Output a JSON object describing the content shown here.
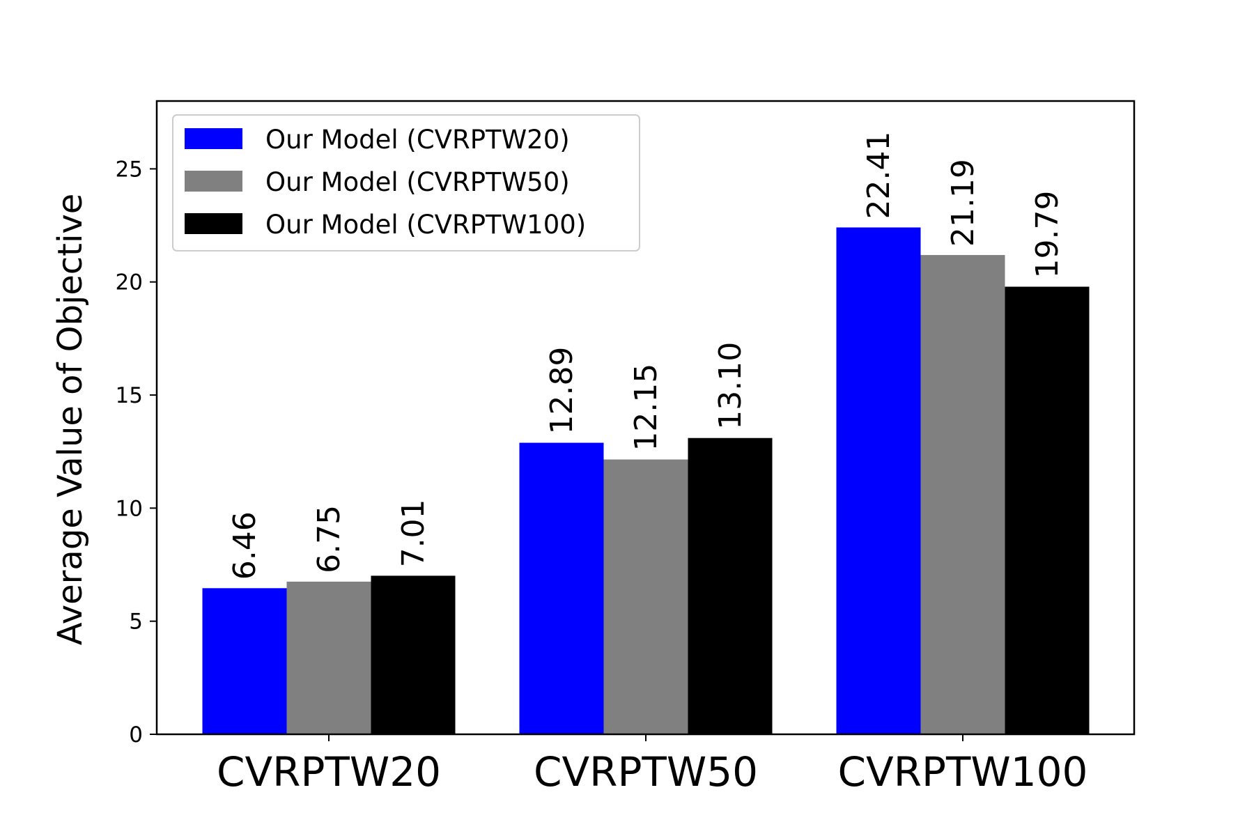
{
  "chart_data": {
    "type": "bar",
    "title": "",
    "xlabel": "",
    "ylabel": "Average Value of Objective",
    "categories": [
      "CVRPTW20",
      "CVRPTW50",
      "CVRPTW100"
    ],
    "series": [
      {
        "name": "Our Model (CVRPTW20)",
        "color": "#0000ff",
        "values": [
          6.46,
          12.89,
          22.41
        ],
        "labels": [
          "6.46",
          "12.89",
          "22.41"
        ]
      },
      {
        "name": "Our Model (CVRPTW50)",
        "color": "#808080",
        "values": [
          6.75,
          12.15,
          21.19
        ],
        "labels": [
          "6.75",
          "12.15",
          "21.19"
        ]
      },
      {
        "name": "Our Model (CVRPTW100)",
        "color": "#000000",
        "values": [
          7.01,
          13.1,
          19.79
        ],
        "labels": [
          "7.01",
          "13.10",
          "19.79"
        ]
      }
    ],
    "ylim": [
      0,
      28
    ],
    "yticks": [
      0,
      5,
      10,
      15,
      20,
      25
    ],
    "grid": false,
    "legend_position": "top-left"
  }
}
